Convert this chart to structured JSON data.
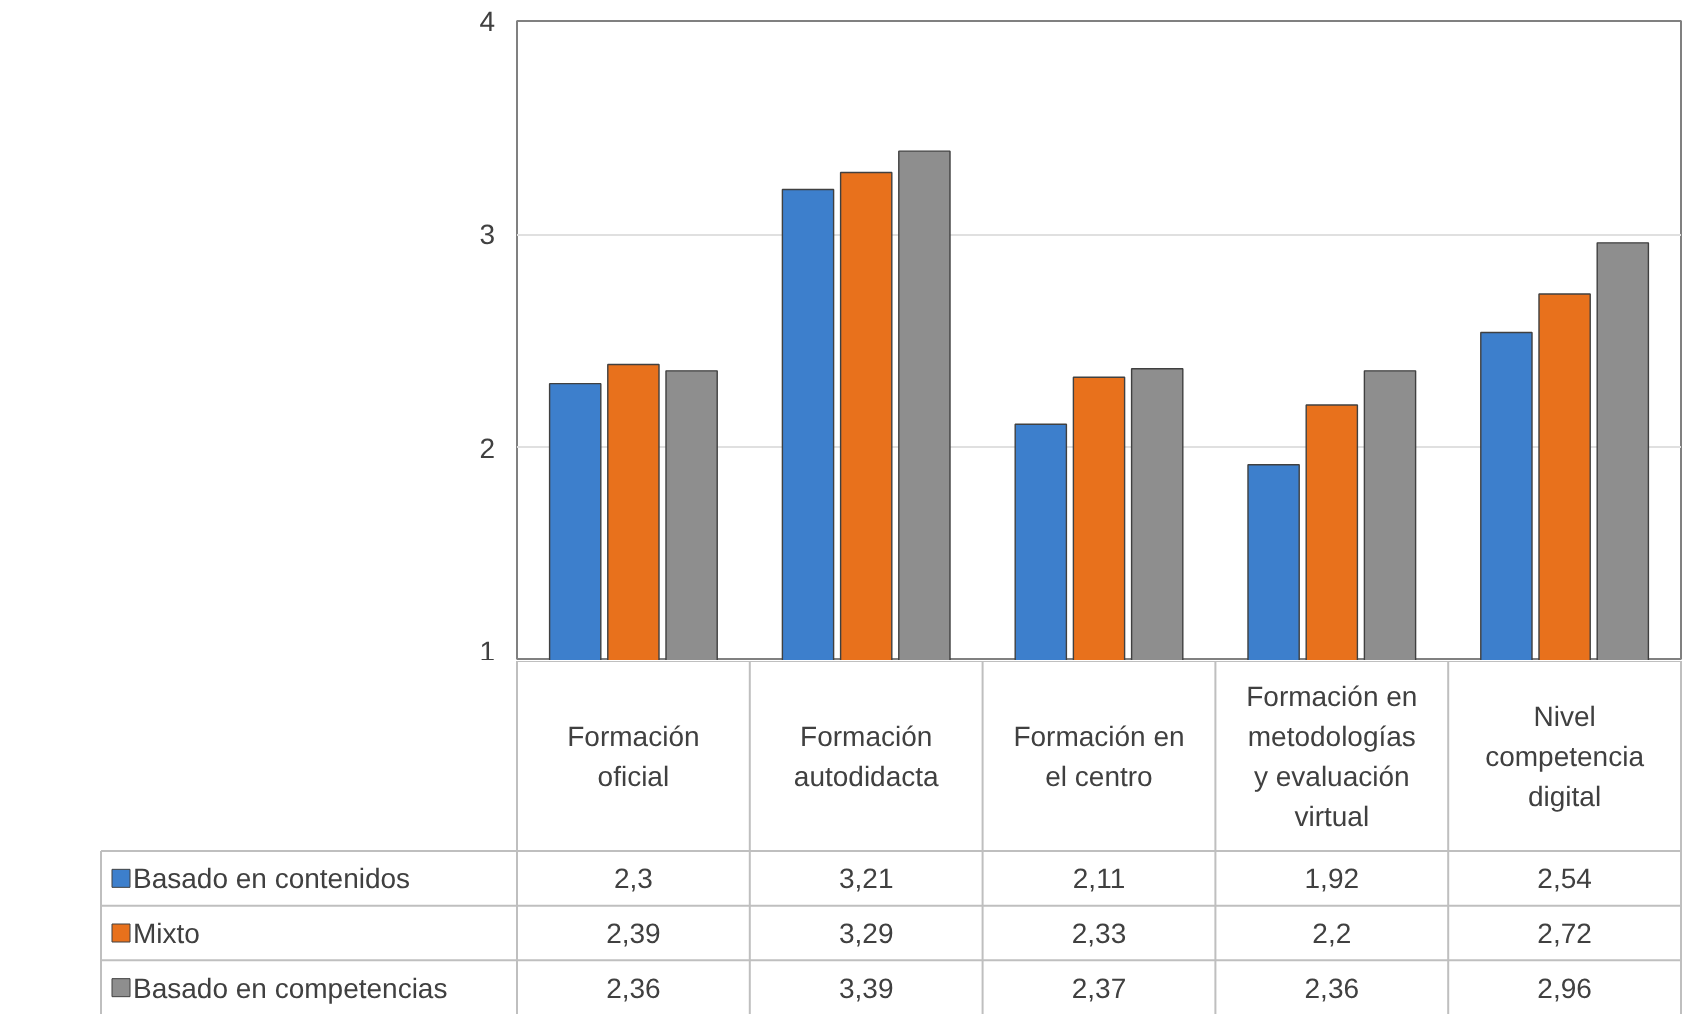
{
  "chart_data": {
    "type": "bar",
    "categories": [
      "Formación\noficial",
      "Formación\nautodidacta",
      "Formación en\nel centro",
      "Formación en\nmetodologías\ny evaluación\nvirtual",
      "Nivel\ncompetencia\ndigital"
    ],
    "series": [
      {
        "name": "Basado en contenidos",
        "color": "#3d7fcc",
        "values": [
          2.3,
          3.21,
          2.11,
          1.92,
          2.54
        ],
        "value_labels": [
          "2,3",
          "3,21",
          "2,11",
          "1,92",
          "2,54"
        ]
      },
      {
        "name": "Mixto",
        "color": "#e8711c",
        "values": [
          2.39,
          3.29,
          2.33,
          2.2,
          2.72
        ],
        "value_labels": [
          "2,39",
          "3,29",
          "2,33",
          "2,2",
          "2,72"
        ]
      },
      {
        "name": "Basado en competencias",
        "color": "#8e8e8e",
        "values": [
          2.36,
          3.39,
          2.37,
          2.36,
          2.96
        ],
        "value_labels": [
          "2,36",
          "3,39",
          "2,37",
          "2,36",
          "2,96"
        ]
      }
    ],
    "ylim": [
      1,
      4
    ],
    "yticks": [
      1,
      2,
      3,
      4
    ],
    "grid": "y",
    "legend": "bottom"
  }
}
